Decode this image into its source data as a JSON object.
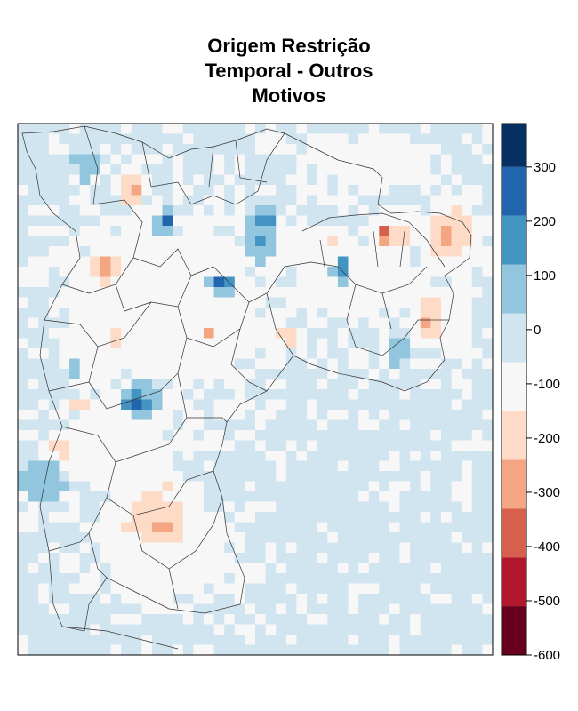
{
  "chart_data": {
    "type": "heatmap",
    "title_lines": [
      "Origem Restrição",
      "Temporal - Outros",
      "Motivos"
    ],
    "colorbar": {
      "range": [
        -600,
        380
      ],
      "breaks": [
        -600,
        -510,
        -420,
        -330,
        -240,
        -150,
        -60,
        30,
        120,
        210,
        300,
        380
      ],
      "colors": [
        "#67001f",
        "#b2182b",
        "#d6604d",
        "#f4a582",
        "#fddbc7",
        "#f7f7f7",
        "#d1e5f0",
        "#92c5de",
        "#4393c3",
        "#2166ac",
        "#053061"
      ],
      "ticks": [
        {
          "value": 300,
          "label": "300"
        },
        {
          "value": 200,
          "label": "200"
        },
        {
          "value": 100,
          "label": "100"
        },
        {
          "value": 0,
          "label": "0"
        },
        {
          "value": -100,
          "label": "-100"
        },
        {
          "value": -200,
          "label": "-200"
        },
        {
          "value": -300,
          "label": "-300"
        },
        {
          "value": -400,
          "label": "-400"
        },
        {
          "value": -500,
          "label": "-500"
        },
        {
          "value": -600,
          "label": "-600"
        }
      ]
    },
    "background_value": -40,
    "blobs": [
      {
        "x": 0.29,
        "y": 0.73,
        "value": -210,
        "rx": 0.09,
        "ry": 0.07
      },
      {
        "x": 0.3,
        "y": 0.76,
        "value": -290,
        "rx": 0.05,
        "ry": 0.035
      },
      {
        "x": 0.24,
        "y": 0.19,
        "value": -110,
        "rx": 0.05,
        "ry": 0.05
      },
      {
        "x": 0.24,
        "y": 0.12,
        "value": -290,
        "rx": 0.03,
        "ry": 0.035
      },
      {
        "x": 0.25,
        "y": 0.12,
        "value": -380,
        "rx": 0.012,
        "ry": 0.012
      },
      {
        "x": 0.31,
        "y": 0.19,
        "value": 130,
        "rx": 0.035,
        "ry": 0.04
      },
      {
        "x": 0.31,
        "y": 0.19,
        "value": 330,
        "rx": 0.012,
        "ry": 0.012
      },
      {
        "x": 0.19,
        "y": 0.27,
        "value": -250,
        "rx": 0.04,
        "ry": 0.04
      },
      {
        "x": 0.15,
        "y": 0.08,
        "value": 80,
        "rx": 0.05,
        "ry": 0.04
      },
      {
        "x": 0.08,
        "y": 0.08,
        "value": 40,
        "rx": 0.04,
        "ry": 0.03
      },
      {
        "x": 0.39,
        "y": 0.12,
        "value": 60,
        "rx": 0.05,
        "ry": 0.05
      },
      {
        "x": 0.51,
        "y": 0.22,
        "value": 110,
        "rx": 0.05,
        "ry": 0.06
      },
      {
        "x": 0.52,
        "y": 0.18,
        "value": 160,
        "rx": 0.025,
        "ry": 0.02
      },
      {
        "x": 0.43,
        "y": 0.3,
        "value": 150,
        "rx": 0.05,
        "ry": 0.03
      },
      {
        "x": 0.43,
        "y": 0.3,
        "value": 340,
        "rx": 0.012,
        "ry": 0.012
      },
      {
        "x": 0.4,
        "y": 0.4,
        "value": -430,
        "rx": 0.01,
        "ry": 0.01
      },
      {
        "x": 0.26,
        "y": 0.52,
        "value": 140,
        "rx": 0.06,
        "ry": 0.05
      },
      {
        "x": 0.24,
        "y": 0.53,
        "value": 340,
        "rx": 0.015,
        "ry": 0.012
      },
      {
        "x": 0.14,
        "y": 0.45,
        "value": 70,
        "rx": 0.12,
        "ry": 0.11
      },
      {
        "x": 0.06,
        "y": 0.67,
        "value": 90,
        "rx": 0.07,
        "ry": 0.06
      },
      {
        "x": 0.09,
        "y": 0.61,
        "value": -230,
        "rx": 0.03,
        "ry": 0.03
      },
      {
        "x": 0.14,
        "y": 0.53,
        "value": -220,
        "rx": 0.025,
        "ry": 0.02
      },
      {
        "x": 0.2,
        "y": 0.4,
        "value": -150,
        "rx": 0.05,
        "ry": 0.05
      },
      {
        "x": 0.57,
        "y": 0.4,
        "value": -230,
        "rx": 0.03,
        "ry": 0.02
      },
      {
        "x": 0.72,
        "y": 0.32,
        "value": 100,
        "rx": 0.07,
        "ry": 0.08
      },
      {
        "x": 0.68,
        "y": 0.28,
        "value": 160,
        "rx": 0.03,
        "ry": 0.05
      },
      {
        "x": 0.79,
        "y": 0.21,
        "value": -220,
        "rx": 0.05,
        "ry": 0.04
      },
      {
        "x": 0.77,
        "y": 0.21,
        "value": -400,
        "rx": 0.015,
        "ry": 0.015
      },
      {
        "x": 0.91,
        "y": 0.21,
        "value": -240,
        "rx": 0.06,
        "ry": 0.07
      },
      {
        "x": 0.9,
        "y": 0.21,
        "value": -330,
        "rx": 0.02,
        "ry": 0.02
      },
      {
        "x": 0.66,
        "y": 0.22,
        "value": -160,
        "rx": 0.06,
        "ry": 0.03
      },
      {
        "x": 0.87,
        "y": 0.37,
        "value": -250,
        "rx": 0.04,
        "ry": 0.05
      },
      {
        "x": 0.8,
        "y": 0.42,
        "value": 60,
        "rx": 0.06,
        "ry": 0.06
      },
      {
        "x": 0.92,
        "y": 0.37,
        "value": -130,
        "rx": 0.05,
        "ry": 0.09
      }
    ],
    "white_regions": [
      {
        "x": 0.32,
        "y": 0.35,
        "rx": 0.28,
        "ry": 0.24
      },
      {
        "x": 0.7,
        "y": 0.3,
        "rx": 0.21,
        "ry": 0.11
      },
      {
        "x": 0.3,
        "y": 0.8,
        "rx": 0.18,
        "ry": 0.13
      },
      {
        "x": 0.2,
        "y": 0.6,
        "rx": 0.16,
        "ry": 0.13
      },
      {
        "x": 0.75,
        "y": 0.08,
        "rx": 0.2,
        "ry": 0.06
      }
    ]
  }
}
